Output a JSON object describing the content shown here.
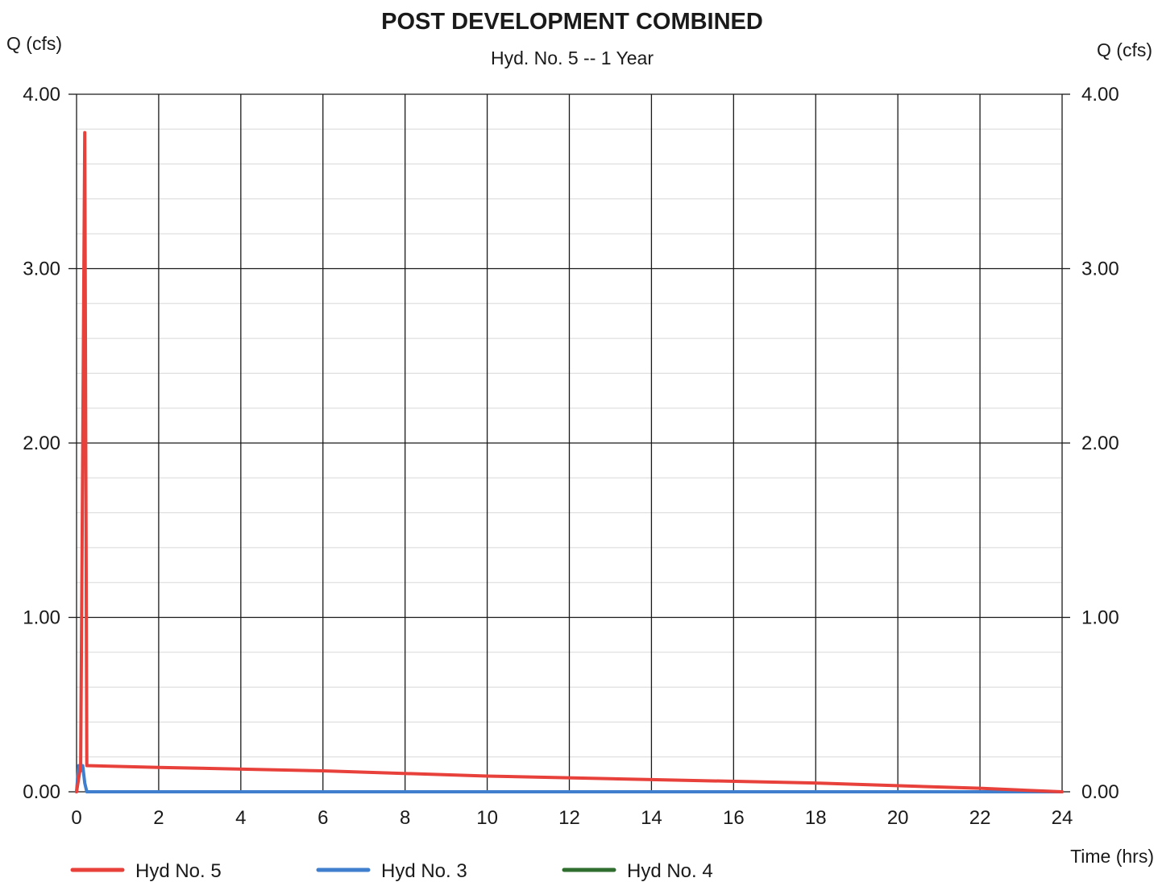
{
  "chart_data": {
    "type": "line",
    "title": "POST DEVELOPMENT COMBINED",
    "subtitle": "Hyd. No. 5 -- 1 Year",
    "ylabel_left": "Q (cfs)",
    "ylabel_right": "Q (cfs)",
    "xlabel": "Time (hrs)",
    "xlim": [
      0,
      24
    ],
    "ylim": [
      0,
      4
    ],
    "x_ticks": [
      "0",
      "2",
      "4",
      "6",
      "8",
      "10",
      "12",
      "14",
      "16",
      "18",
      "20",
      "22",
      "24"
    ],
    "x_tick_values": [
      0,
      2,
      4,
      6,
      8,
      10,
      12,
      14,
      16,
      18,
      20,
      22,
      24
    ],
    "y_ticks": [
      "0.00",
      "1.00",
      "2.00",
      "3.00",
      "4.00"
    ],
    "y_tick_values": [
      0,
      1,
      2,
      3,
      4
    ],
    "grid": true,
    "legend_position": "bottom",
    "series": [
      {
        "name": "Hyd No. 5",
        "color": "#e8403a",
        "x": [
          0,
          0.1,
          0.2,
          0.25,
          2,
          6,
          10,
          14,
          18,
          22,
          24
        ],
        "y": [
          0,
          0.15,
          3.78,
          0.15,
          0.14,
          0.12,
          0.09,
          0.07,
          0.05,
          0.02,
          0.0
        ]
      },
      {
        "name": "Hyd No. 3",
        "color": "#3f7fce",
        "x": [
          0,
          0.05,
          0.1,
          0.15,
          0.2,
          0.25,
          2,
          6,
          12,
          18,
          24
        ],
        "y": [
          0,
          0.15,
          0.12,
          0.15,
          0.05,
          0.0,
          0.0,
          0.0,
          0.0,
          0.0,
          0.0
        ]
      },
      {
        "name": "Hyd No. 4",
        "color": "#2f6e2f",
        "x": [],
        "y": []
      }
    ]
  }
}
